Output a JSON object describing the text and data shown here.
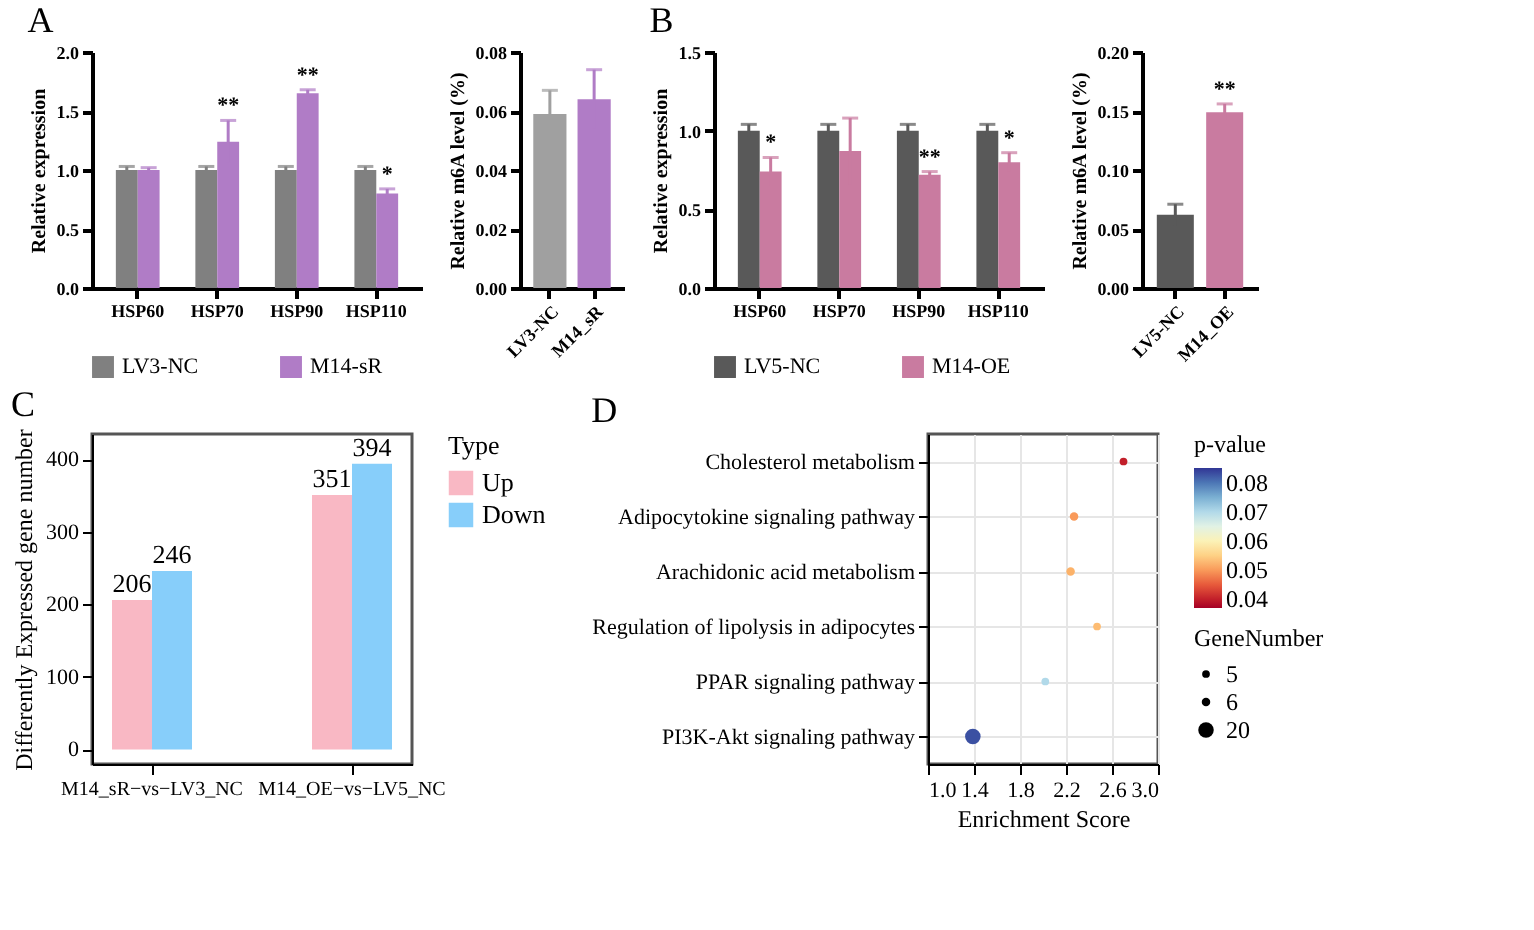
{
  "chart_data": [
    {
      "type": "bar",
      "title": "A",
      "ylabel": "Relative expression",
      "categories": [
        "HSP60",
        "HSP70",
        "HSP90",
        "HSP110"
      ],
      "series": [
        {
          "name": "LV3-NC",
          "color": "#808080",
          "values": [
            1.0,
            1.0,
            1.0,
            1.0
          ],
          "errors": [
            0.03,
            0.03,
            0.03,
            0.03
          ]
        },
        {
          "name": "M14-sR",
          "color": "#b07cc6",
          "values": [
            1.0,
            1.24,
            1.65,
            0.8
          ],
          "errors": [
            0.02,
            0.18,
            0.03,
            0.04
          ]
        }
      ],
      "ylim": [
        0,
        2
      ],
      "yticks": [
        {
          "value": 0,
          "label": "0.0"
        },
        {
          "value": 0.5,
          "label": "0.5"
        },
        {
          "value": 1,
          "label": "1.0"
        },
        {
          "value": 1.5,
          "label": "1.5"
        },
        {
          "value": 2,
          "label": "2.0"
        }
      ],
      "legend": "bottom",
      "annotations": [
        {
          "text": "**",
          "x": "HSP70",
          "y": 1.42
        },
        {
          "text": "**",
          "x": "HSP90",
          "y": 1.68
        },
        {
          "text": "*",
          "x": "HSP110",
          "y": 0.84
        }
      ]
    },
    {
      "type": "bar",
      "ylabel": "Relative m6A level (%)",
      "categories": [
        "LV3-NC",
        "M14_sR"
      ],
      "values": [
        0.059,
        0.064
      ],
      "errors": [
        0.008,
        0.01
      ],
      "colors": [
        "#a0a0a0",
        "#b07cc6"
      ],
      "ylim": [
        0,
        0.08
      ],
      "yticks": [
        {
          "value": 0,
          "label": "0.00"
        },
        {
          "value": 0.02,
          "label": "0.02"
        },
        {
          "value": 0.04,
          "label": "0.04"
        },
        {
          "value": 0.06,
          "label": "0.06"
        },
        {
          "value": 0.08,
          "label": "0.08"
        }
      ]
    },
    {
      "type": "bar",
      "title": "B",
      "ylabel": "Relative expression",
      "categories": [
        "HSP60",
        "HSP70",
        "HSP90",
        "HSP110"
      ],
      "series": [
        {
          "name": "LV5-NC",
          "color": "#595959",
          "values": [
            1.0,
            1.0,
            1.0,
            1.0
          ],
          "errors": [
            0.04,
            0.04,
            0.04,
            0.04
          ]
        },
        {
          "name": "M14-OE",
          "color": "#c97ba0",
          "values": [
            0.74,
            0.87,
            0.72,
            0.8
          ],
          "errors": [
            0.09,
            0.21,
            0.02,
            0.06
          ]
        }
      ],
      "ylim": [
        0,
        1.5
      ],
      "yticks": [
        {
          "value": 0,
          "label": "0.0"
        },
        {
          "value": 0.5,
          "label": "0.5"
        },
        {
          "value": 1,
          "label": "1.0"
        },
        {
          "value": 1.5,
          "label": "1.5"
        }
      ],
      "legend": "bottom",
      "annotations": [
        {
          "text": "*",
          "x": "HSP60",
          "y": 0.83
        },
        {
          "text": "**",
          "x": "HSP90",
          "y": 0.74
        },
        {
          "text": "*",
          "x": "HSP110",
          "y": 0.86
        }
      ]
    },
    {
      "type": "bar",
      "ylabel": "Relative m6A level (%)",
      "categories": [
        "LV5-NC",
        "M14_OE"
      ],
      "values": [
        0.062,
        0.149
      ],
      "errors": [
        0.009,
        0.007
      ],
      "colors": [
        "#595959",
        "#c97ba0"
      ],
      "ylim": [
        0,
        0.2
      ],
      "yticks": [
        {
          "value": 0,
          "label": "0.00"
        },
        {
          "value": 0.05,
          "label": "0.05"
        },
        {
          "value": 0.1,
          "label": "0.10"
        },
        {
          "value": 0.15,
          "label": "0.15"
        },
        {
          "value": 0.2,
          "label": "0.20"
        }
      ],
      "annotations": [
        {
          "text": "**",
          "x": "M14_OE",
          "y": 0.156
        }
      ]
    },
    {
      "type": "bar",
      "title": "C",
      "ylabel": "Differently Expressed gene number",
      "categories": [
        "M14_sR−vs−LV3_NC",
        "M14_OE−vs−LV5_NC"
      ],
      "series": [
        {
          "name": "Up",
          "color": "#f9b8c4",
          "values": [
            206,
            351
          ]
        },
        {
          "name": "Down",
          "color": "#87cefa",
          "values": [
            246,
            394
          ]
        }
      ],
      "ylim": [
        -20,
        435
      ],
      "yticks": [
        0,
        100,
        200,
        300,
        400
      ],
      "data_labels": true,
      "legend": "right",
      "legend_title": "Type"
    },
    {
      "type": "bubble",
      "title": "D",
      "orientation": "horizontal",
      "xlabel": "Enrichment Score",
      "categories": [
        "Cholesterol metabolism",
        "Adipocytokine signaling pathway",
        "Arachidonic acid metabolism",
        "Regulation of lipolysis in adipocytes",
        "PPAR signaling pathway",
        "PI3K-Akt signaling pathway"
      ],
      "values": [
        2.7,
        2.27,
        2.24,
        2.47,
        2.02,
        1.39
      ],
      "sizes": [
        5,
        6,
        6,
        5,
        5,
        20
      ],
      "size_legend": [
        5,
        6,
        20
      ],
      "legend_title": "GeneNumber",
      "cvalues": [
        0.04,
        0.05,
        0.052,
        0.053,
        0.07,
        0.083
      ],
      "clim": [
        0.037,
        0.085
      ],
      "cticks": [
        {
          "value": 0.04,
          "label": "0.04"
        },
        {
          "value": 0.05,
          "label": "0.05"
        },
        {
          "value": 0.06,
          "label": "0.06"
        },
        {
          "value": 0.07,
          "label": "0.07"
        },
        {
          "value": 0.08,
          "label": "0.08"
        }
      ],
      "clabel": "p-value",
      "xlim": [
        1.0,
        3.0
      ],
      "xticks": [
        {
          "value": 1,
          "label": "1.0"
        },
        {
          "value": 1.4,
          "label": "1.4"
        },
        {
          "value": 1.8,
          "label": "1.8"
        },
        {
          "value": 2.2,
          "label": "2.2"
        },
        {
          "value": 2.6,
          "label": "2.6"
        },
        {
          "value": 3,
          "label": "3.0"
        }
      ],
      "grid": true
    }
  ]
}
